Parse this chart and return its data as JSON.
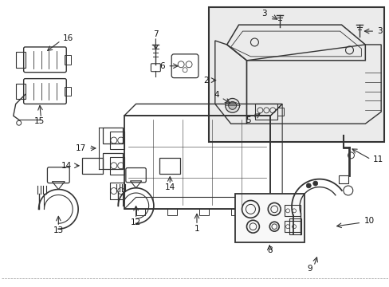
{
  "background_color": "#ffffff",
  "line_color": "#333333",
  "text_color": "#111111",
  "inset_bg": "#e8e8e8",
  "fig_width": 4.89,
  "fig_height": 3.6,
  "dpi": 100
}
